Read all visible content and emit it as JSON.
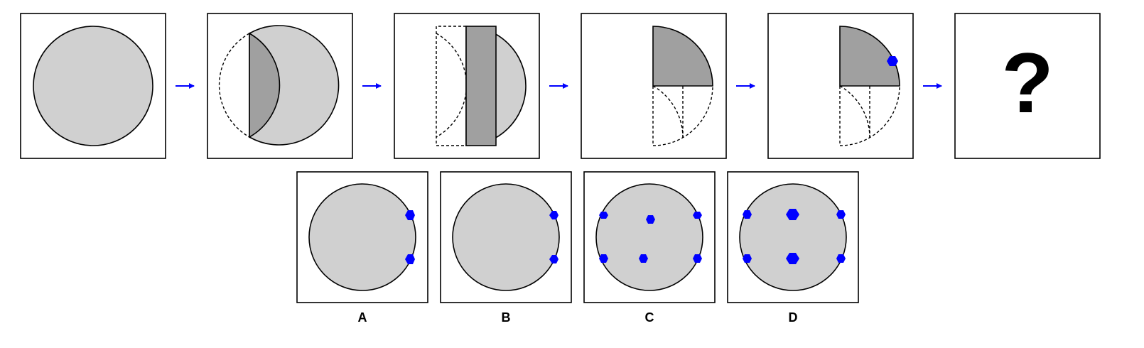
{
  "colors": {
    "circle_fill": "#d0d0d0",
    "fold_fill": "#a0a0a0",
    "hole_fill": "#0000ff",
    "arrow": "#0000ff",
    "outline": "#000000"
  },
  "sequence": {
    "steps": [
      {
        "name": "step-1-full-circle"
      },
      {
        "name": "step-2-first-fold"
      },
      {
        "name": "step-3-second-fold"
      },
      {
        "name": "step-4-quarter-fold"
      },
      {
        "name": "step-5-punched"
      }
    ],
    "question_mark": "?"
  },
  "options": [
    {
      "label": "A"
    },
    {
      "label": "B"
    },
    {
      "label": "C"
    },
    {
      "label": "D"
    }
  ]
}
